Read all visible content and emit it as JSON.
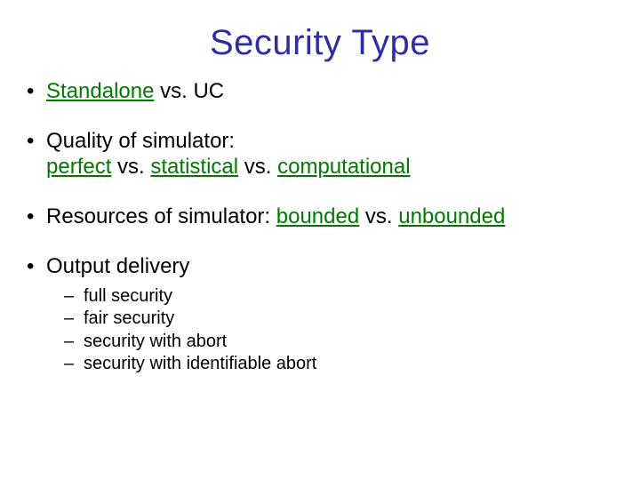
{
  "colors": {
    "title": "#2e2e9e",
    "body_text": "#000000",
    "highlight": "#007a00",
    "background": "#ffffff"
  },
  "typography": {
    "title_fontsize": 40,
    "body_fontsize": 24,
    "sub_fontsize": 20,
    "font_family": "Arial"
  },
  "title": "Security Type",
  "bullets": [
    {
      "segments": [
        {
          "text": "Standalone",
          "hl": true
        },
        {
          "text": " vs. UC",
          "hl": false
        }
      ]
    },
    {
      "segments": [
        {
          "text": "Quality of simulator:\n",
          "hl": false
        },
        {
          "text": "perfect",
          "hl": true
        },
        {
          "text": " vs. ",
          "hl": false
        },
        {
          "text": "statistical",
          "hl": true
        },
        {
          "text": " vs. ",
          "hl": false
        },
        {
          "text": "computational",
          "hl": true
        }
      ]
    },
    {
      "segments": [
        {
          "text": "Resources of simulator: ",
          "hl": false
        },
        {
          "text": "bounded",
          "hl": true
        },
        {
          "text": " vs. ",
          "hl": false
        },
        {
          "text": "unbounded",
          "hl": true
        }
      ]
    },
    {
      "segments": [
        {
          "text": "Output delivery",
          "hl": false
        }
      ],
      "sub": [
        "full security",
        "fair security",
        "security with abort",
        "security with identifiable abort"
      ]
    }
  ]
}
